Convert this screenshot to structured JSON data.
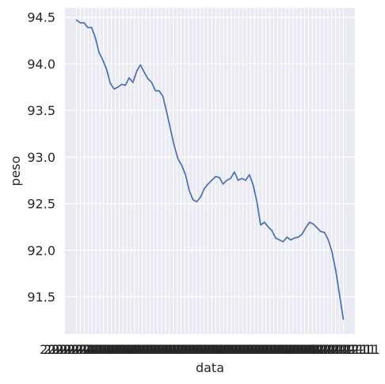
{
  "chart_data": {
    "type": "line",
    "title": "",
    "xlabel": "data",
    "ylabel": "peso",
    "x_tick_count": 70,
    "x_tick_label_text": "2022-12-11",
    "ylim": [
      91.1,
      94.6
    ],
    "yticks": [
      91.5,
      92.0,
      92.5,
      93.0,
      93.5,
      94.0,
      94.5
    ],
    "ytick_labels": [
      "91.5",
      "92.0",
      "92.5",
      "93.0",
      "93.5",
      "94.0",
      "94.5"
    ],
    "grid": true,
    "background": "#eaeaf2",
    "grid_color": "#ffffff",
    "series": [
      {
        "color": "#4c72b0",
        "values": [
          94.47,
          94.44,
          94.44,
          94.39,
          94.39,
          94.28,
          94.12,
          94.04,
          93.94,
          93.79,
          93.73,
          93.75,
          93.78,
          93.77,
          93.85,
          93.8,
          93.92,
          93.99,
          93.91,
          93.84,
          93.8,
          93.71,
          93.71,
          93.65,
          93.48,
          93.3,
          93.12,
          92.98,
          92.91,
          92.81,
          92.64,
          92.54,
          92.52,
          92.57,
          92.66,
          92.71,
          92.75,
          92.79,
          92.78,
          92.71,
          92.75,
          92.77,
          92.84,
          92.75,
          92.77,
          92.75,
          92.81,
          92.7,
          92.52,
          92.27,
          92.3,
          92.25,
          92.21,
          92.13,
          92.11,
          92.09,
          92.14,
          92.11,
          92.13,
          92.14,
          92.17,
          92.24,
          92.3,
          92.28,
          92.24,
          92.2,
          92.19,
          92.11,
          91.98,
          91.78,
          91.52,
          91.26
        ]
      }
    ]
  }
}
